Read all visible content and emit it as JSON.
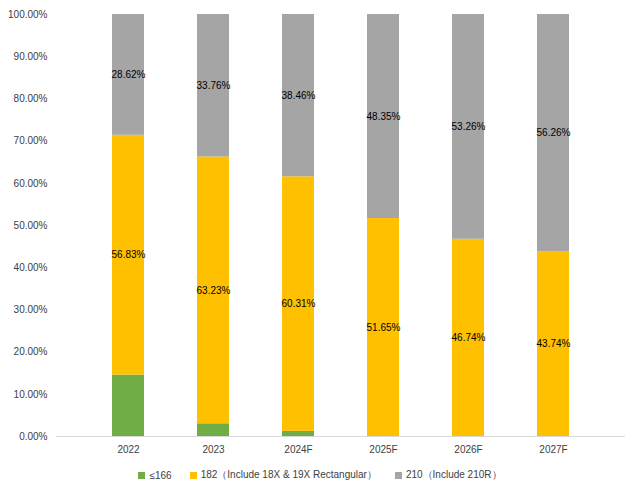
{
  "chart_data": {
    "type": "bar",
    "stacked": true,
    "categories": [
      "2022",
      "2023",
      "2024F",
      "2025F",
      "2026F",
      "2027F"
    ],
    "series": [
      {
        "name": "≤166",
        "color": "#70ad47",
        "data_labels": false,
        "values": [
          14.55,
          3.01,
          1.23,
          0,
          0,
          0
        ]
      },
      {
        "name": "182（Include 18X & 19X Rectangular）",
        "color": "#ffc000",
        "data_labels": true,
        "values": [
          56.83,
          63.23,
          60.31,
          51.65,
          46.74,
          43.74
        ],
        "value_labels": [
          "56.83%",
          "63.23%",
          "60.31%",
          "51.65%",
          "46.74%",
          "43.74%"
        ]
      },
      {
        "name": "210（Include 210R）",
        "color": "#a5a5a5",
        "data_labels": true,
        "values": [
          28.62,
          33.76,
          38.46,
          48.35,
          53.26,
          56.26
        ],
        "value_labels": [
          "28.62%",
          "33.76%",
          "38.46%",
          "48.35%",
          "53.26%",
          "56.26%"
        ]
      }
    ],
    "ylim": [
      0,
      100
    ],
    "yticks": [
      {
        "value": 0,
        "label": "0.00%"
      },
      {
        "value": 10,
        "label": "10.00%"
      },
      {
        "value": 20,
        "label": "20.00%"
      },
      {
        "value": 30,
        "label": "30.00%"
      },
      {
        "value": 40,
        "label": "40.00%"
      },
      {
        "value": 50,
        "label": "50.00%"
      },
      {
        "value": 60,
        "label": "60.00%"
      },
      {
        "value": 70,
        "label": "70.00%"
      },
      {
        "value": 80,
        "label": "80.00%"
      },
      {
        "value": 90,
        "label": "90.00%"
      },
      {
        "value": 100,
        "label": "100.00%"
      }
    ],
    "grid": false,
    "legend": "bottom"
  }
}
